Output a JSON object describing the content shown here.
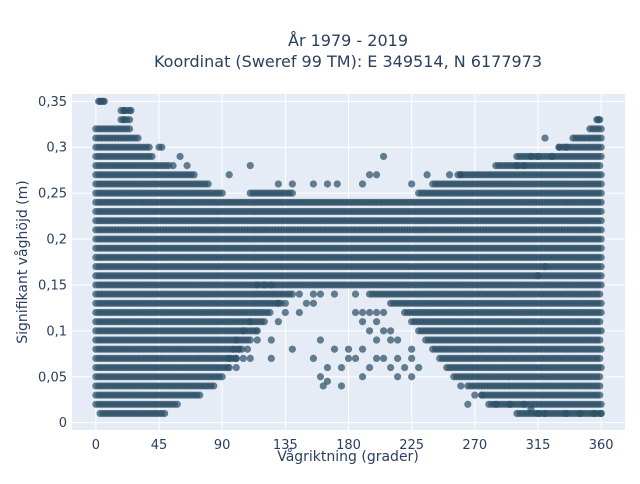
{
  "chart_data": {
    "type": "scatter",
    "title_lines": [
      "År 1979 - 2019",
      "Koordinat (Sweref 99 TM): E 349514, N 6177973"
    ],
    "xlabel": "Vågriktning (grader)",
    "ylabel": "Signifikant våghöjd (m)",
    "xlim": [
      -17,
      377
    ],
    "ylim": [
      -0.008,
      0.358
    ],
    "x_ticks": [
      0,
      45,
      90,
      135,
      180,
      225,
      270,
      315,
      360
    ],
    "y_ticks": [
      0,
      0.05,
      0.1,
      0.15,
      0.2,
      0.25,
      0.3,
      0.35
    ],
    "y_tick_labels": [
      "0",
      "0,05",
      "0,1",
      "0,15",
      "0,2",
      "0,25",
      "0,3",
      "0,35"
    ],
    "grid": true,
    "colors": {
      "marker": "#2e5066",
      "plot_bg": "#e5ecf6",
      "grid": "#ffffff",
      "text": "#2a3f5f"
    },
    "bands": [
      {
        "y": 0.01,
        "x": [
          [
            3,
            50
          ],
          [
            300,
            360
          ]
        ]
      },
      {
        "y": 0.02,
        "x": [
          [
            0,
            58
          ],
          [
            280,
            360
          ]
        ]
      },
      {
        "y": 0.03,
        "x": [
          [
            0,
            75
          ],
          [
            275,
            360
          ]
        ]
      },
      {
        "y": 0.04,
        "x": [
          [
            0,
            85
          ],
          [
            265,
            360
          ]
        ]
      },
      {
        "y": 0.05,
        "x": [
          [
            0,
            90
          ],
          [
            255,
            360
          ]
        ]
      },
      {
        "y": 0.06,
        "x": [
          [
            0,
            95
          ],
          [
            250,
            360
          ]
        ]
      },
      {
        "y": 0.07,
        "x": [
          [
            0,
            100
          ],
          [
            245,
            360
          ]
        ]
      },
      {
        "y": 0.08,
        "x": [
          [
            0,
            105
          ],
          [
            240,
            360
          ]
        ]
      },
      {
        "y": 0.09,
        "x": [
          [
            0,
            110
          ],
          [
            235,
            360
          ]
        ]
      },
      {
        "y": 0.1,
        "x": [
          [
            0,
            115
          ],
          [
            230,
            360
          ]
        ]
      },
      {
        "y": 0.11,
        "x": [
          [
            0,
            120
          ],
          [
            225,
            360
          ]
        ]
      },
      {
        "y": 0.12,
        "x": [
          [
            0,
            125
          ],
          [
            220,
            360
          ]
        ]
      },
      {
        "y": 0.13,
        "x": [
          [
            0,
            132
          ],
          [
            210,
            360
          ]
        ]
      },
      {
        "y": 0.14,
        "x": [
          [
            0,
            140
          ],
          [
            195,
            360
          ]
        ]
      },
      {
        "y": 0.15,
        "x": [
          [
            0,
            360
          ]
        ]
      },
      {
        "y": 0.16,
        "x": [
          [
            0,
            360
          ]
        ]
      },
      {
        "y": 0.17,
        "x": [
          [
            0,
            360
          ]
        ]
      },
      {
        "y": 0.18,
        "x": [
          [
            0,
            360
          ]
        ]
      },
      {
        "y": 0.19,
        "x": [
          [
            0,
            360
          ]
        ]
      },
      {
        "y": 0.2,
        "x": [
          [
            0,
            360
          ]
        ]
      },
      {
        "y": 0.21,
        "x": [
          [
            0,
            360
          ]
        ]
      },
      {
        "y": 0.22,
        "x": [
          [
            0,
            360
          ]
        ]
      },
      {
        "y": 0.23,
        "x": [
          [
            0,
            360
          ]
        ]
      },
      {
        "y": 0.24,
        "x": [
          [
            0,
            360
          ]
        ]
      },
      {
        "y": 0.25,
        "x": [
          [
            0,
            90
          ],
          [
            110,
            140
          ],
          [
            230,
            360
          ]
        ]
      },
      {
        "y": 0.26,
        "x": [
          [
            0,
            80
          ],
          [
            240,
            360
          ]
        ]
      },
      {
        "y": 0.27,
        "x": [
          [
            0,
            70
          ],
          [
            258,
            360
          ]
        ]
      },
      {
        "y": 0.28,
        "x": [
          [
            0,
            50
          ],
          [
            285,
            360
          ]
        ]
      },
      {
        "y": 0.29,
        "x": [
          [
            0,
            40
          ],
          [
            300,
            360
          ]
        ]
      },
      {
        "y": 0.3,
        "x": [
          [
            0,
            38
          ],
          [
            330,
            360
          ]
        ]
      },
      {
        "y": 0.31,
        "x": [
          [
            0,
            30
          ],
          [
            340,
            360
          ]
        ]
      },
      {
        "y": 0.32,
        "x": [
          [
            0,
            25
          ],
          [
            352,
            360
          ]
        ]
      },
      {
        "y": 0.33,
        "x": [
          [
            18,
            25
          ],
          [
            357,
            360
          ]
        ]
      },
      {
        "y": 0.34,
        "x": [
          [
            18,
            25
          ]
        ]
      },
      {
        "y": 0.35,
        "x": [
          [
            2,
            6
          ]
        ]
      }
    ],
    "points": [
      [
        3,
        0.35
      ],
      [
        5,
        0.35
      ],
      [
        20,
        0.34
      ],
      [
        25,
        0.34
      ],
      [
        20,
        0.33
      ],
      [
        358,
        0.33
      ],
      [
        320,
        0.31
      ],
      [
        205,
        0.29
      ],
      [
        52,
        0.28
      ],
      [
        55,
        0.28
      ],
      [
        110,
        0.28
      ],
      [
        45,
        0.3
      ],
      [
        47,
        0.3
      ],
      [
        60,
        0.29
      ],
      [
        65,
        0.28
      ],
      [
        195,
        0.27
      ],
      [
        200,
        0.27
      ],
      [
        236,
        0.27
      ],
      [
        252,
        0.27
      ],
      [
        95,
        0.27
      ],
      [
        130,
        0.26
      ],
      [
        140,
        0.26
      ],
      [
        155,
        0.26
      ],
      [
        165,
        0.26
      ],
      [
        172,
        0.26
      ],
      [
        190,
        0.26
      ],
      [
        225,
        0.26
      ],
      [
        115,
        0.15
      ],
      [
        120,
        0.15
      ],
      [
        125,
        0.15
      ],
      [
        155,
        0.14
      ],
      [
        160,
        0.14
      ],
      [
        170,
        0.14
      ],
      [
        185,
        0.14
      ],
      [
        145,
        0.14
      ],
      [
        150,
        0.13
      ],
      [
        155,
        0.13
      ],
      [
        130,
        0.13
      ],
      [
        135,
        0.13
      ],
      [
        185,
        0.12
      ],
      [
        190,
        0.12
      ],
      [
        195,
        0.12
      ],
      [
        200,
        0.12
      ],
      [
        205,
        0.12
      ],
      [
        190,
        0.11
      ],
      [
        200,
        0.11
      ],
      [
        130,
        0.11
      ],
      [
        135,
        0.12
      ],
      [
        145,
        0.12
      ],
      [
        110,
        0.11
      ],
      [
        105,
        0.1
      ],
      [
        115,
        0.1
      ],
      [
        115,
        0.09
      ],
      [
        125,
        0.09
      ],
      [
        100,
        0.09
      ],
      [
        195,
        0.1
      ],
      [
        205,
        0.1
      ],
      [
        210,
        0.1
      ],
      [
        200,
        0.09
      ],
      [
        210,
        0.09
      ],
      [
        215,
        0.09
      ],
      [
        225,
        0.08
      ],
      [
        190,
        0.08
      ],
      [
        180,
        0.08
      ],
      [
        160,
        0.09
      ],
      [
        170,
        0.08
      ],
      [
        98,
        0.08
      ],
      [
        102,
        0.08
      ],
      [
        108,
        0.08
      ],
      [
        95,
        0.07
      ],
      [
        100,
        0.07
      ],
      [
        105,
        0.07
      ],
      [
        110,
        0.07
      ],
      [
        125,
        0.07
      ],
      [
        140,
        0.08
      ],
      [
        155,
        0.07
      ],
      [
        180,
        0.07
      ],
      [
        185,
        0.07
      ],
      [
        200,
        0.07
      ],
      [
        205,
        0.07
      ],
      [
        215,
        0.07
      ],
      [
        225,
        0.07
      ],
      [
        230,
        0.06
      ],
      [
        220,
        0.06
      ],
      [
        165,
        0.06
      ],
      [
        175,
        0.06
      ],
      [
        195,
        0.06
      ],
      [
        95,
        0.06
      ],
      [
        100,
        0.06
      ],
      [
        210,
        0.06
      ],
      [
        215,
        0.05
      ],
      [
        225,
        0.05
      ],
      [
        160,
        0.05
      ],
      [
        162,
        0.04
      ],
      [
        165,
        0.045
      ],
      [
        175,
        0.04
      ],
      [
        190,
        0.05
      ],
      [
        260,
        0.04
      ],
      [
        270,
        0.03
      ],
      [
        275,
        0.03
      ],
      [
        265,
        0.02
      ],
      [
        285,
        0.02
      ],
      [
        315,
        0.01
      ],
      [
        320,
        0.01
      ],
      [
        335,
        0.01
      ],
      [
        345,
        0.01
      ],
      [
        355,
        0.01
      ],
      [
        360,
        0.01
      ],
      [
        295,
        0.02
      ],
      [
        305,
        0.02
      ],
      [
        310,
        0.015
      ],
      [
        315,
        0.16
      ],
      [
        320,
        0.17
      ],
      [
        260,
        0.27
      ],
      [
        300,
        0.28
      ],
      [
        305,
        0.28
      ],
      [
        310,
        0.29
      ],
      [
        315,
        0.29
      ],
      [
        325,
        0.29
      ],
      [
        330,
        0.3
      ],
      [
        335,
        0.3
      ]
    ]
  }
}
